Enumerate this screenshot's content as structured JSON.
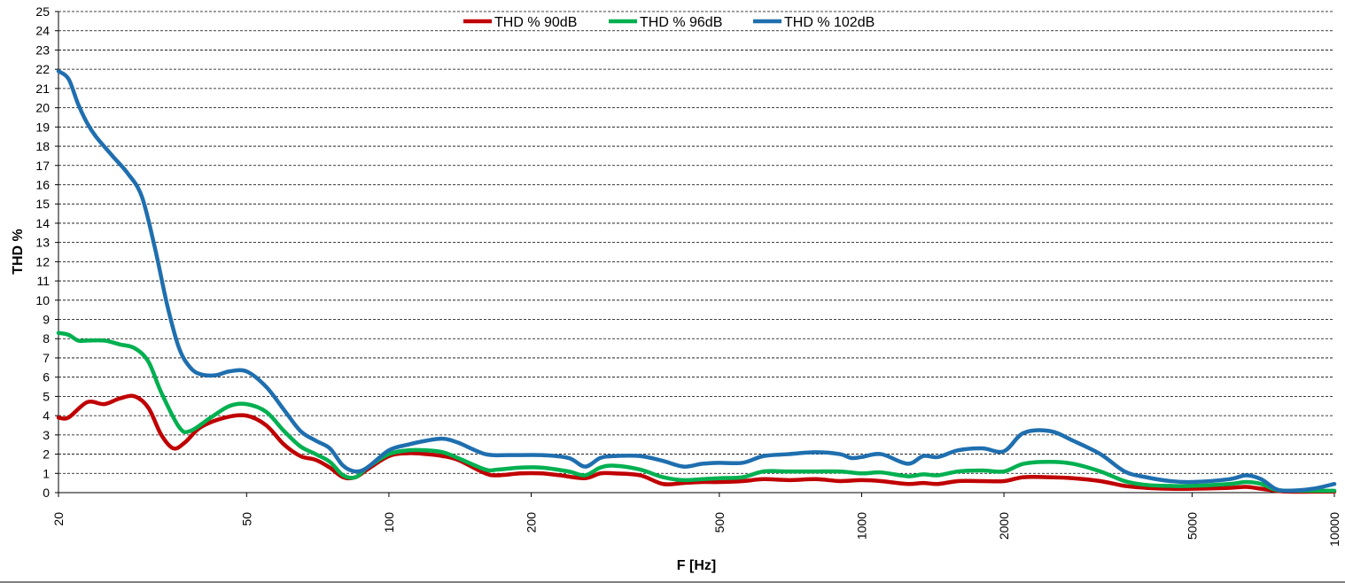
{
  "chart_data": {
    "type": "line",
    "title": "",
    "xlabel": "F [Hz]",
    "ylabel": "THD %",
    "x_scale": "log",
    "xlim": [
      20,
      10000
    ],
    "ylim": [
      0,
      25
    ],
    "x_ticks": [
      20,
      50,
      100,
      200,
      500,
      1000,
      2000,
      5000,
      10000
    ],
    "x_tick_labels": [
      "20",
      "50",
      "100",
      "200",
      "500",
      "1000",
      "2000",
      "5000",
      "10000"
    ],
    "y_ticks": [
      0,
      1,
      2,
      3,
      4,
      5,
      6,
      7,
      8,
      9,
      10,
      11,
      12,
      13,
      14,
      15,
      16,
      17,
      18,
      19,
      20,
      21,
      22,
      23,
      24,
      25
    ],
    "y_tick_labels": [
      "0",
      "1",
      "2",
      "3",
      "4",
      "5",
      "6",
      "7",
      "8",
      "9",
      "10",
      "11",
      "12",
      "13",
      "14",
      "15",
      "16",
      "17",
      "18",
      "19",
      "20",
      "21",
      "22",
      "23",
      "24",
      "25"
    ],
    "grid": true,
    "legend_position": "top-center",
    "series": [
      {
        "name": "THD % 90dB",
        "color": "#C00000",
        "points": [
          [
            20,
            3.9
          ],
          [
            21,
            3.9
          ],
          [
            23,
            4.7
          ],
          [
            25,
            4.6
          ],
          [
            27,
            4.9
          ],
          [
            29,
            5.0
          ],
          [
            31,
            4.4
          ],
          [
            33,
            3.0
          ],
          [
            35,
            2.3
          ],
          [
            37,
            2.6
          ],
          [
            40,
            3.4
          ],
          [
            45,
            3.9
          ],
          [
            50,
            4.0
          ],
          [
            55,
            3.5
          ],
          [
            60,
            2.5
          ],
          [
            65,
            1.9
          ],
          [
            70,
            1.7
          ],
          [
            75,
            1.3
          ],
          [
            80,
            0.8
          ],
          [
            85,
            0.8
          ],
          [
            90,
            1.2
          ],
          [
            100,
            1.9
          ],
          [
            110,
            2.05
          ],
          [
            120,
            2.0
          ],
          [
            130,
            1.9
          ],
          [
            140,
            1.7
          ],
          [
            160,
            1.0
          ],
          [
            170,
            0.9
          ],
          [
            190,
            1.0
          ],
          [
            210,
            1.0
          ],
          [
            230,
            0.9
          ],
          [
            260,
            0.75
          ],
          [
            280,
            1.0
          ],
          [
            300,
            1.0
          ],
          [
            340,
            0.9
          ],
          [
            380,
            0.45
          ],
          [
            420,
            0.5
          ],
          [
            460,
            0.55
          ],
          [
            500,
            0.55
          ],
          [
            560,
            0.6
          ],
          [
            620,
            0.7
          ],
          [
            700,
            0.65
          ],
          [
            800,
            0.7
          ],
          [
            900,
            0.6
          ],
          [
            1000,
            0.65
          ],
          [
            1100,
            0.6
          ],
          [
            1250,
            0.45
          ],
          [
            1350,
            0.5
          ],
          [
            1450,
            0.45
          ],
          [
            1600,
            0.6
          ],
          [
            1800,
            0.6
          ],
          [
            2000,
            0.6
          ],
          [
            2200,
            0.8
          ],
          [
            2500,
            0.8
          ],
          [
            2800,
            0.75
          ],
          [
            3200,
            0.6
          ],
          [
            3600,
            0.35
          ],
          [
            4000,
            0.25
          ],
          [
            4500,
            0.2
          ],
          [
            5000,
            0.2
          ],
          [
            6000,
            0.25
          ],
          [
            6500,
            0.3
          ],
          [
            7000,
            0.2
          ],
          [
            7500,
            0.1
          ],
          [
            8000,
            0.05
          ],
          [
            9000,
            0.05
          ],
          [
            10000,
            0.05
          ]
        ]
      },
      {
        "name": "THD % 96dB",
        "color": "#00B050",
        "points": [
          [
            20,
            8.3
          ],
          [
            21,
            8.2
          ],
          [
            22,
            7.9
          ],
          [
            23,
            7.9
          ],
          [
            25,
            7.9
          ],
          [
            27,
            7.7
          ],
          [
            29,
            7.5
          ],
          [
            31,
            6.8
          ],
          [
            33,
            5.2
          ],
          [
            36,
            3.4
          ],
          [
            38,
            3.2
          ],
          [
            42,
            3.9
          ],
          [
            46,
            4.5
          ],
          [
            50,
            4.6
          ],
          [
            55,
            4.2
          ],
          [
            60,
            3.2
          ],
          [
            65,
            2.4
          ],
          [
            70,
            2.0
          ],
          [
            75,
            1.6
          ],
          [
            80,
            0.9
          ],
          [
            85,
            0.8
          ],
          [
            90,
            1.3
          ],
          [
            100,
            2.0
          ],
          [
            110,
            2.2
          ],
          [
            120,
            2.2
          ],
          [
            130,
            2.1
          ],
          [
            140,
            1.8
          ],
          [
            160,
            1.2
          ],
          [
            170,
            1.2
          ],
          [
            190,
            1.3
          ],
          [
            210,
            1.3
          ],
          [
            240,
            1.1
          ],
          [
            260,
            0.9
          ],
          [
            280,
            1.3
          ],
          [
            300,
            1.4
          ],
          [
            340,
            1.2
          ],
          [
            380,
            0.8
          ],
          [
            420,
            0.65
          ],
          [
            460,
            0.7
          ],
          [
            500,
            0.75
          ],
          [
            560,
            0.8
          ],
          [
            620,
            1.1
          ],
          [
            700,
            1.1
          ],
          [
            800,
            1.1
          ],
          [
            900,
            1.1
          ],
          [
            1000,
            1.0
          ],
          [
            1100,
            1.05
          ],
          [
            1250,
            0.85
          ],
          [
            1350,
            0.95
          ],
          [
            1450,
            0.9
          ],
          [
            1600,
            1.1
          ],
          [
            1800,
            1.15
          ],
          [
            2000,
            1.1
          ],
          [
            2200,
            1.5
          ],
          [
            2500,
            1.6
          ],
          [
            2800,
            1.5
          ],
          [
            3200,
            1.1
          ],
          [
            3600,
            0.6
          ],
          [
            4000,
            0.4
          ],
          [
            4500,
            0.35
          ],
          [
            5000,
            0.35
          ],
          [
            6000,
            0.45
          ],
          [
            6500,
            0.55
          ],
          [
            7000,
            0.45
          ],
          [
            7500,
            0.15
          ],
          [
            8000,
            0.1
          ],
          [
            9000,
            0.1
          ],
          [
            10000,
            0.1
          ]
        ]
      },
      {
        "name": "THD % 102dB",
        "color": "#1F6FAF",
        "points": [
          [
            20,
            21.9
          ],
          [
            21,
            21.5
          ],
          [
            22,
            20.2
          ],
          [
            23,
            19.2
          ],
          [
            24,
            18.5
          ],
          [
            26,
            17.5
          ],
          [
            28,
            16.6
          ],
          [
            30,
            15.4
          ],
          [
            32,
            12.7
          ],
          [
            34,
            9.7
          ],
          [
            36,
            7.5
          ],
          [
            38,
            6.5
          ],
          [
            40,
            6.15
          ],
          [
            43,
            6.1
          ],
          [
            46,
            6.3
          ],
          [
            50,
            6.3
          ],
          [
            55,
            5.5
          ],
          [
            60,
            4.3
          ],
          [
            65,
            3.2
          ],
          [
            70,
            2.7
          ],
          [
            75,
            2.3
          ],
          [
            80,
            1.4
          ],
          [
            85,
            1.1
          ],
          [
            90,
            1.3
          ],
          [
            100,
            2.2
          ],
          [
            110,
            2.5
          ],
          [
            120,
            2.7
          ],
          [
            130,
            2.8
          ],
          [
            140,
            2.6
          ],
          [
            160,
            2.0
          ],
          [
            180,
            1.95
          ],
          [
            210,
            1.95
          ],
          [
            240,
            1.8
          ],
          [
            260,
            1.35
          ],
          [
            280,
            1.8
          ],
          [
            300,
            1.9
          ],
          [
            340,
            1.9
          ],
          [
            380,
            1.65
          ],
          [
            420,
            1.35
          ],
          [
            460,
            1.5
          ],
          [
            500,
            1.55
          ],
          [
            560,
            1.55
          ],
          [
            620,
            1.9
          ],
          [
            700,
            2.0
          ],
          [
            800,
            2.1
          ],
          [
            900,
            2.0
          ],
          [
            950,
            1.8
          ],
          [
            1000,
            1.85
          ],
          [
            1100,
            2.0
          ],
          [
            1250,
            1.5
          ],
          [
            1350,
            1.9
          ],
          [
            1450,
            1.85
          ],
          [
            1600,
            2.2
          ],
          [
            1800,
            2.3
          ],
          [
            2000,
            2.15
          ],
          [
            2200,
            3.1
          ],
          [
            2500,
            3.2
          ],
          [
            2800,
            2.7
          ],
          [
            3200,
            2.0
          ],
          [
            3600,
            1.1
          ],
          [
            4000,
            0.8
          ],
          [
            4500,
            0.6
          ],
          [
            5000,
            0.55
          ],
          [
            6000,
            0.7
          ],
          [
            6500,
            0.9
          ],
          [
            7000,
            0.7
          ],
          [
            7500,
            0.2
          ],
          [
            8000,
            0.1
          ],
          [
            9000,
            0.2
          ],
          [
            10000,
            0.45
          ]
        ]
      }
    ]
  }
}
